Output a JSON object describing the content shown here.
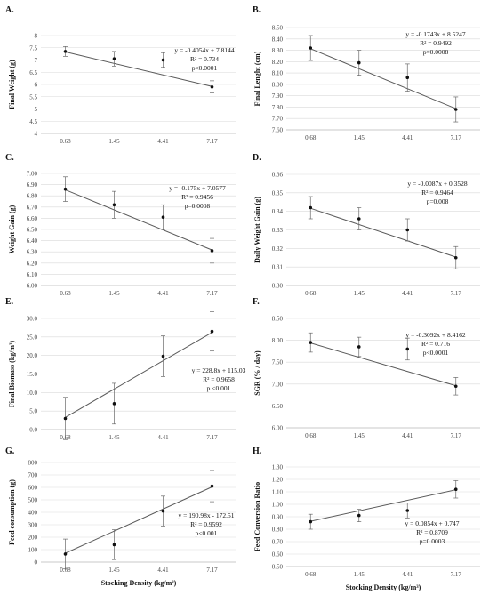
{
  "chart_data": [
    {
      "panel": "A.",
      "type": "scatter",
      "categories": [
        "0.68",
        "1.45",
        "4.41",
        "7.17"
      ],
      "values": [
        7.35,
        7.05,
        7.0,
        5.9
      ],
      "error": [
        0.2,
        0.3,
        0.3,
        0.25
      ],
      "trendline": {
        "slope": -0.4054,
        "intercept": 7.8144
      },
      "annotation": [
        "y = -0.4054x + 7.8144",
        "R² = 0.734",
        "p<0.0001"
      ],
      "ylabel": "Final Weight (g)",
      "xlabel": "",
      "ylim": [
        4,
        8
      ],
      "yticks": [
        "4",
        "4.5",
        "5",
        "5.5",
        "6",
        "6.5",
        "7",
        "7.5",
        "8"
      ]
    },
    {
      "panel": "B.",
      "type": "scatter",
      "categories": [
        "0.68",
        "1.45",
        "4.41",
        "7.17"
      ],
      "values": [
        8.32,
        8.19,
        8.06,
        7.78
      ],
      "error": [
        0.11,
        0.11,
        0.12,
        0.11
      ],
      "trendline": {
        "slope": -0.1743,
        "intercept": 8.5247
      },
      "annotation": [
        "y = -0.1743x + 8.5247",
        "R² = 0.9492",
        "p=0.0008"
      ],
      "ylabel": "Final Lenght (cm)",
      "xlabel": "",
      "ylim": [
        7.6,
        8.5
      ],
      "yticks": [
        "7.60",
        "7.70",
        "7.80",
        "7.90",
        "8.00",
        "8.10",
        "8.20",
        "8.30",
        "8.40",
        "8.50"
      ]
    },
    {
      "panel": "C.",
      "type": "scatter",
      "categories": [
        "0.68",
        "1.45",
        "4.41",
        "7.17"
      ],
      "values": [
        6.86,
        6.72,
        6.61,
        6.31
      ],
      "error": [
        0.11,
        0.12,
        0.11,
        0.11
      ],
      "trendline": {
        "slope": -0.175,
        "intercept": 7.0577
      },
      "annotation": [
        "y = -0.175x + 7.0577",
        "R² = 0.9456",
        "p=0.0008"
      ],
      "ylabel": "Weight Gain (g)",
      "xlabel": "",
      "ylim": [
        6.0,
        7.0
      ],
      "yticks": [
        "6.00",
        "6.10",
        "6.20",
        "6.30",
        "6.40",
        "6.50",
        "6.60",
        "6.70",
        "6.80",
        "6.90",
        "7.00"
      ]
    },
    {
      "panel": "D.",
      "type": "scatter",
      "categories": [
        "0.68",
        "1.45",
        "4.41",
        "7.17"
      ],
      "values": [
        0.342,
        0.336,
        0.33,
        0.315
      ],
      "error": [
        0.006,
        0.006,
        0.006,
        0.006
      ],
      "trendline": {
        "slope": -0.0087,
        "intercept": 0.3528
      },
      "annotation": [
        "y = -0.0087x + 0.3528",
        "R² = 0.9464",
        "p=0.008"
      ],
      "ylabel": "Daily Weight Gain (g)",
      "xlabel": "",
      "ylim": [
        0.3,
        0.36
      ],
      "yticks": [
        "0.30",
        "0.31",
        "0.32",
        "0.33",
        "0.34",
        "0.35",
        "0.36"
      ]
    },
    {
      "panel": "E.",
      "type": "scatter",
      "categories": [
        "0.68",
        "1.45",
        "4.41",
        "7.17"
      ],
      "values": [
        3.0,
        7.0,
        19.8,
        26.5
      ],
      "error": [
        5.7,
        5.5,
        5.5,
        5.3
      ],
      "trendline": {
        "slope": 228.8,
        "intercept": 115.03
      },
      "annotation": [
        "y = 228.8x + 115.03",
        "R² = 0.9658",
        "p <0.001"
      ],
      "ylabel": "Final Biomass (kg/m³)",
      "xlabel": "",
      "ylim": [
        0,
        30
      ],
      "yticks": [
        "0.0",
        "5.0",
        "10.0",
        "15.0",
        "20.0",
        "25.0",
        "30.0"
      ]
    },
    {
      "panel": "F.",
      "type": "scatter",
      "categories": [
        "0.68",
        "1.45",
        "4.41",
        "7.17"
      ],
      "values": [
        7.95,
        7.85,
        7.8,
        6.95
      ],
      "error": [
        0.22,
        0.22,
        0.25,
        0.2
      ],
      "trendline": {
        "slope": -0.3092,
        "intercept": 8.4162
      },
      "annotation": [
        "y = -0.3092x + 8.4162",
        "R² = 0.716",
        "p<0.0001"
      ],
      "ylabel": "SGR (% / day)",
      "xlabel": "",
      "ylim": [
        6.0,
        8.5
      ],
      "yticks": [
        "6.00",
        "6.50",
        "7.00",
        "7.50",
        "8.00",
        "8.50"
      ]
    },
    {
      "panel": "G.",
      "type": "scatter",
      "categories": [
        "0.68",
        "1.45",
        "4.41",
        "7.17"
      ],
      "values": [
        65,
        140,
        410,
        610
      ],
      "error": [
        120,
        120,
        120,
        125
      ],
      "trendline": {
        "slope": 190.98,
        "intercept": -172.51
      },
      "annotation": [
        "y = 190.98x - 172.51",
        "R² = 0.9592",
        "p<0.001"
      ],
      "ylabel": "Feed consumption (g)",
      "xlabel": "Stocking Density (kg/m³)",
      "ylim": [
        0,
        800
      ],
      "yticks": [
        "0",
        "100",
        "200",
        "300",
        "400",
        "500",
        "600",
        "700",
        "800"
      ]
    },
    {
      "panel": "H.",
      "type": "scatter",
      "categories": [
        "0.68",
        "1.45",
        "4.41",
        "7.17"
      ],
      "values": [
        0.86,
        0.91,
        0.95,
        1.12
      ],
      "error": [
        0.06,
        0.05,
        0.06,
        0.07
      ],
      "trendline": {
        "slope": 0.0854,
        "intercept": 0.747
      },
      "annotation": [
        "y = 0.0854x + 0.747",
        "R² = 0.8709",
        "p=0.0003"
      ],
      "ylabel": "Feed Conversion Ratio",
      "xlabel": "Stocking Density (kg/m³)",
      "ylim": [
        0.5,
        1.3
      ],
      "yticks": [
        "0.50",
        "0.60",
        "0.70",
        "0.80",
        "0.90",
        "1.00",
        "1.10",
        "1.20",
        "1.30"
      ]
    }
  ]
}
